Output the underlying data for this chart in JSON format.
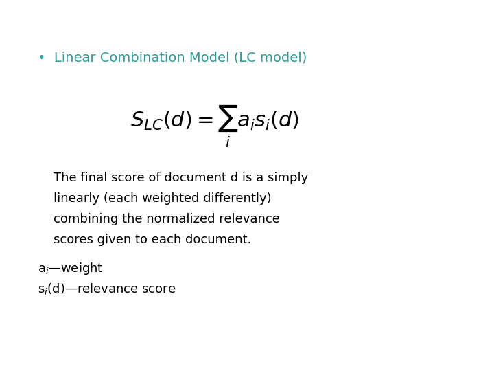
{
  "background_color": "#ffffff",
  "bullet_text": "Linear Combination Model (LC model)",
  "bullet_color": "#2E9B9B",
  "bullet_fontsize": 14,
  "formula": "$S_{LC}(d) = \\sum_{i} a_i s_i(d)$",
  "formula_fontsize": 22,
  "body_text_lines": [
    "    The final score of document d is a simply",
    "    linearly (each weighted differently)",
    "    combining the normalized relevance",
    "    scores given to each document."
  ],
  "body_fontsize": 13,
  "body_color": "#000000",
  "footnote_lines": [
    "a$_i$—weight",
    "s$_i$(d)—relevance score"
  ],
  "footnote_fontsize": 13,
  "footnote_color": "#000000"
}
